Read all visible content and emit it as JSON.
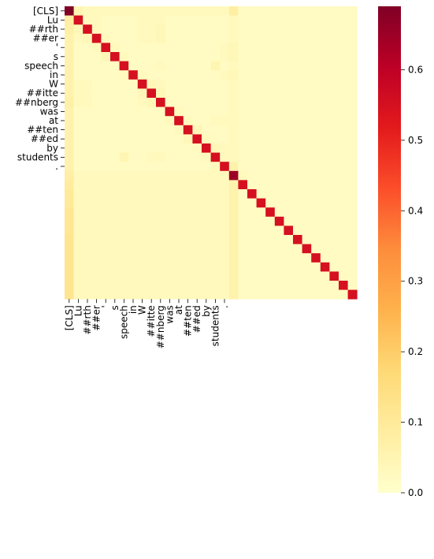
{
  "chart_data": {
    "type": "heatmap",
    "title": "",
    "xlabel": "",
    "ylabel": "",
    "x_tick_labels": [
      "[CLS]",
      "Lu",
      "##rth",
      "##er",
      "'",
      "s",
      "speech",
      "in",
      "W",
      "##itte",
      "##nberg",
      "was",
      "at",
      "##ten",
      "##ed",
      "by",
      "students",
      "."
    ],
    "y_tick_labels": [
      "[CLS]",
      "Lu",
      "##rth",
      "##er",
      "'",
      "s",
      "speech",
      "in",
      "W",
      "##itte",
      "##nberg",
      "was",
      "at",
      "##ten",
      "##ed",
      "by",
      "students",
      "."
    ],
    "rows": 32,
    "cols": 32,
    "description": "attention weights; diagonal is strong, first column weak but nonzero",
    "cells": [
      [
        0.69,
        0.05,
        0.03,
        0.03,
        0.03,
        0.03,
        0.03,
        0.03,
        0.03,
        0.03,
        0.03,
        0.03,
        0.03,
        0.03,
        0.03,
        0.03,
        0.03,
        0.03,
        0.08,
        0.02,
        0.02,
        0.02,
        0.02,
        0.02,
        0.02,
        0.02,
        0.02,
        0.02,
        0.02,
        0.02,
        0.02,
        0.02
      ],
      [
        0.08,
        0.55,
        0.03,
        0.03,
        0.02,
        0.02,
        0.02,
        0.02,
        0.03,
        0.03,
        0.03,
        0.02,
        0.02,
        0.02,
        0.02,
        0.02,
        0.02,
        0.02,
        0.03,
        0.02,
        0.02,
        0.02,
        0.02,
        0.02,
        0.02,
        0.02,
        0.02,
        0.02,
        0.02,
        0.02,
        0.02,
        0.02
      ],
      [
        0.07,
        0.04,
        0.55,
        0.03,
        0.02,
        0.02,
        0.02,
        0.02,
        0.03,
        0.03,
        0.04,
        0.02,
        0.02,
        0.02,
        0.02,
        0.02,
        0.02,
        0.02,
        0.03,
        0.02,
        0.02,
        0.02,
        0.02,
        0.02,
        0.02,
        0.02,
        0.02,
        0.02,
        0.02,
        0.02,
        0.02,
        0.02
      ],
      [
        0.06,
        0.03,
        0.04,
        0.55,
        0.03,
        0.02,
        0.02,
        0.02,
        0.03,
        0.03,
        0.04,
        0.02,
        0.02,
        0.02,
        0.02,
        0.02,
        0.02,
        0.02,
        0.03,
        0.02,
        0.02,
        0.02,
        0.02,
        0.02,
        0.02,
        0.02,
        0.02,
        0.02,
        0.02,
        0.02,
        0.02,
        0.02
      ],
      [
        0.06,
        0.02,
        0.02,
        0.03,
        0.55,
        0.03,
        0.02,
        0.02,
        0.02,
        0.02,
        0.02,
        0.02,
        0.02,
        0.02,
        0.02,
        0.02,
        0.02,
        0.03,
        0.04,
        0.02,
        0.02,
        0.02,
        0.02,
        0.02,
        0.02,
        0.02,
        0.02,
        0.02,
        0.02,
        0.02,
        0.02,
        0.02
      ],
      [
        0.06,
        0.02,
        0.02,
        0.02,
        0.04,
        0.55,
        0.03,
        0.02,
        0.02,
        0.02,
        0.02,
        0.02,
        0.02,
        0.02,
        0.02,
        0.02,
        0.02,
        0.03,
        0.04,
        0.02,
        0.02,
        0.02,
        0.02,
        0.02,
        0.02,
        0.02,
        0.02,
        0.02,
        0.02,
        0.02,
        0.02,
        0.02
      ],
      [
        0.06,
        0.02,
        0.02,
        0.02,
        0.02,
        0.02,
        0.55,
        0.02,
        0.02,
        0.02,
        0.03,
        0.02,
        0.02,
        0.02,
        0.02,
        0.02,
        0.05,
        0.02,
        0.03,
        0.02,
        0.02,
        0.02,
        0.02,
        0.02,
        0.02,
        0.02,
        0.02,
        0.02,
        0.02,
        0.02,
        0.02,
        0.02
      ],
      [
        0.06,
        0.02,
        0.02,
        0.02,
        0.02,
        0.02,
        0.03,
        0.55,
        0.03,
        0.02,
        0.02,
        0.02,
        0.02,
        0.02,
        0.02,
        0.02,
        0.02,
        0.03,
        0.04,
        0.02,
        0.02,
        0.02,
        0.02,
        0.02,
        0.02,
        0.02,
        0.02,
        0.02,
        0.02,
        0.02,
        0.02,
        0.02
      ],
      [
        0.06,
        0.03,
        0.03,
        0.02,
        0.02,
        0.02,
        0.02,
        0.02,
        0.55,
        0.04,
        0.03,
        0.02,
        0.02,
        0.02,
        0.02,
        0.02,
        0.02,
        0.02,
        0.03,
        0.02,
        0.02,
        0.02,
        0.02,
        0.02,
        0.02,
        0.02,
        0.02,
        0.02,
        0.02,
        0.02,
        0.02,
        0.02
      ],
      [
        0.06,
        0.03,
        0.03,
        0.02,
        0.02,
        0.02,
        0.02,
        0.02,
        0.04,
        0.55,
        0.04,
        0.02,
        0.02,
        0.02,
        0.02,
        0.02,
        0.02,
        0.02,
        0.03,
        0.02,
        0.02,
        0.02,
        0.02,
        0.02,
        0.02,
        0.02,
        0.02,
        0.02,
        0.02,
        0.02,
        0.02,
        0.02
      ],
      [
        0.07,
        0.03,
        0.03,
        0.02,
        0.02,
        0.02,
        0.02,
        0.02,
        0.03,
        0.04,
        0.55,
        0.02,
        0.02,
        0.02,
        0.02,
        0.02,
        0.02,
        0.02,
        0.03,
        0.02,
        0.02,
        0.02,
        0.02,
        0.02,
        0.02,
        0.02,
        0.02,
        0.02,
        0.02,
        0.02,
        0.02,
        0.02
      ],
      [
        0.06,
        0.02,
        0.02,
        0.02,
        0.02,
        0.02,
        0.02,
        0.02,
        0.02,
        0.02,
        0.02,
        0.55,
        0.03,
        0.02,
        0.02,
        0.02,
        0.02,
        0.02,
        0.03,
        0.02,
        0.02,
        0.02,
        0.02,
        0.02,
        0.02,
        0.02,
        0.02,
        0.02,
        0.02,
        0.02,
        0.02,
        0.02
      ],
      [
        0.06,
        0.02,
        0.02,
        0.02,
        0.02,
        0.02,
        0.02,
        0.02,
        0.02,
        0.02,
        0.02,
        0.03,
        0.55,
        0.03,
        0.02,
        0.02,
        0.03,
        0.03,
        0.03,
        0.02,
        0.02,
        0.02,
        0.02,
        0.02,
        0.02,
        0.02,
        0.02,
        0.02,
        0.02,
        0.02,
        0.02,
        0.02
      ],
      [
        0.06,
        0.02,
        0.02,
        0.02,
        0.02,
        0.02,
        0.02,
        0.02,
        0.02,
        0.02,
        0.02,
        0.02,
        0.03,
        0.55,
        0.04,
        0.02,
        0.02,
        0.02,
        0.03,
        0.02,
        0.02,
        0.02,
        0.02,
        0.02,
        0.02,
        0.02,
        0.02,
        0.02,
        0.02,
        0.02,
        0.02,
        0.02
      ],
      [
        0.06,
        0.02,
        0.02,
        0.02,
        0.02,
        0.02,
        0.02,
        0.02,
        0.02,
        0.02,
        0.02,
        0.02,
        0.02,
        0.04,
        0.55,
        0.03,
        0.02,
        0.02,
        0.03,
        0.02,
        0.02,
        0.02,
        0.02,
        0.02,
        0.02,
        0.02,
        0.02,
        0.02,
        0.02,
        0.02,
        0.02,
        0.02
      ],
      [
        0.06,
        0.02,
        0.02,
        0.02,
        0.02,
        0.02,
        0.02,
        0.02,
        0.02,
        0.02,
        0.02,
        0.02,
        0.02,
        0.02,
        0.03,
        0.55,
        0.04,
        0.03,
        0.03,
        0.02,
        0.02,
        0.02,
        0.02,
        0.02,
        0.02,
        0.02,
        0.02,
        0.02,
        0.02,
        0.02,
        0.02,
        0.02
      ],
      [
        0.06,
        0.02,
        0.02,
        0.02,
        0.02,
        0.02,
        0.05,
        0.02,
        0.02,
        0.03,
        0.03,
        0.02,
        0.02,
        0.02,
        0.02,
        0.03,
        0.55,
        0.03,
        0.03,
        0.02,
        0.02,
        0.02,
        0.02,
        0.02,
        0.02,
        0.02,
        0.02,
        0.02,
        0.02,
        0.02,
        0.02,
        0.02
      ],
      [
        0.06,
        0.02,
        0.02,
        0.02,
        0.02,
        0.02,
        0.02,
        0.02,
        0.02,
        0.02,
        0.02,
        0.02,
        0.02,
        0.02,
        0.02,
        0.02,
        0.03,
        0.55,
        0.06,
        0.02,
        0.02,
        0.02,
        0.02,
        0.02,
        0.02,
        0.02,
        0.02,
        0.02,
        0.02,
        0.02,
        0.02,
        0.02
      ],
      [
        0.08,
        0.03,
        0.03,
        0.03,
        0.03,
        0.03,
        0.03,
        0.03,
        0.03,
        0.03,
        0.03,
        0.03,
        0.03,
        0.03,
        0.03,
        0.03,
        0.03,
        0.03,
        0.65,
        0.03,
        0.02,
        0.02,
        0.02,
        0.02,
        0.02,
        0.02,
        0.02,
        0.02,
        0.02,
        0.02,
        0.02,
        0.02
      ],
      [
        0.09,
        0.03,
        0.03,
        0.03,
        0.03,
        0.03,
        0.03,
        0.03,
        0.03,
        0.03,
        0.03,
        0.03,
        0.03,
        0.03,
        0.03,
        0.03,
        0.03,
        0.03,
        0.06,
        0.55,
        0.02,
        0.02,
        0.02,
        0.02,
        0.02,
        0.02,
        0.02,
        0.02,
        0.02,
        0.02,
        0.02,
        0.02
      ],
      [
        0.1,
        0.03,
        0.03,
        0.03,
        0.03,
        0.03,
        0.03,
        0.03,
        0.03,
        0.03,
        0.03,
        0.03,
        0.03,
        0.03,
        0.03,
        0.03,
        0.03,
        0.03,
        0.06,
        0.02,
        0.55,
        0.02,
        0.02,
        0.02,
        0.02,
        0.02,
        0.02,
        0.02,
        0.02,
        0.02,
        0.02,
        0.02
      ],
      [
        0.1,
        0.03,
        0.03,
        0.03,
        0.03,
        0.03,
        0.03,
        0.03,
        0.03,
        0.03,
        0.03,
        0.03,
        0.03,
        0.03,
        0.03,
        0.03,
        0.03,
        0.03,
        0.06,
        0.02,
        0.02,
        0.55,
        0.02,
        0.02,
        0.02,
        0.02,
        0.02,
        0.02,
        0.02,
        0.02,
        0.02,
        0.02
      ],
      [
        0.11,
        0.03,
        0.03,
        0.03,
        0.03,
        0.03,
        0.03,
        0.03,
        0.03,
        0.03,
        0.03,
        0.03,
        0.03,
        0.03,
        0.03,
        0.03,
        0.03,
        0.03,
        0.06,
        0.02,
        0.02,
        0.02,
        0.55,
        0.02,
        0.02,
        0.02,
        0.02,
        0.02,
        0.02,
        0.02,
        0.02,
        0.02
      ],
      [
        0.11,
        0.03,
        0.03,
        0.03,
        0.03,
        0.03,
        0.03,
        0.03,
        0.03,
        0.03,
        0.03,
        0.03,
        0.03,
        0.03,
        0.03,
        0.03,
        0.03,
        0.03,
        0.06,
        0.02,
        0.02,
        0.02,
        0.02,
        0.55,
        0.02,
        0.02,
        0.02,
        0.02,
        0.02,
        0.02,
        0.02,
        0.02
      ],
      [
        0.11,
        0.03,
        0.03,
        0.03,
        0.03,
        0.03,
        0.03,
        0.03,
        0.03,
        0.03,
        0.03,
        0.03,
        0.03,
        0.03,
        0.03,
        0.03,
        0.03,
        0.03,
        0.06,
        0.02,
        0.02,
        0.02,
        0.02,
        0.02,
        0.55,
        0.02,
        0.02,
        0.02,
        0.02,
        0.02,
        0.02,
        0.02
      ],
      [
        0.12,
        0.03,
        0.03,
        0.03,
        0.03,
        0.03,
        0.03,
        0.03,
        0.03,
        0.03,
        0.03,
        0.03,
        0.03,
        0.03,
        0.03,
        0.03,
        0.03,
        0.03,
        0.06,
        0.02,
        0.02,
        0.02,
        0.02,
        0.02,
        0.02,
        0.55,
        0.02,
        0.02,
        0.02,
        0.02,
        0.02,
        0.02
      ],
      [
        0.12,
        0.03,
        0.03,
        0.03,
        0.03,
        0.03,
        0.03,
        0.03,
        0.03,
        0.03,
        0.03,
        0.03,
        0.03,
        0.03,
        0.03,
        0.03,
        0.03,
        0.03,
        0.06,
        0.02,
        0.02,
        0.02,
        0.02,
        0.02,
        0.02,
        0.02,
        0.55,
        0.02,
        0.02,
        0.02,
        0.02,
        0.02
      ],
      [
        0.12,
        0.03,
        0.03,
        0.03,
        0.03,
        0.03,
        0.03,
        0.03,
        0.03,
        0.03,
        0.03,
        0.03,
        0.03,
        0.03,
        0.03,
        0.03,
        0.03,
        0.03,
        0.06,
        0.02,
        0.02,
        0.02,
        0.02,
        0.02,
        0.02,
        0.02,
        0.02,
        0.55,
        0.02,
        0.02,
        0.02,
        0.02
      ],
      [
        0.12,
        0.03,
        0.03,
        0.03,
        0.03,
        0.03,
        0.03,
        0.03,
        0.03,
        0.03,
        0.03,
        0.03,
        0.03,
        0.03,
        0.03,
        0.03,
        0.03,
        0.03,
        0.06,
        0.02,
        0.02,
        0.02,
        0.02,
        0.02,
        0.02,
        0.02,
        0.02,
        0.02,
        0.55,
        0.02,
        0.02,
        0.02
      ],
      [
        0.12,
        0.03,
        0.03,
        0.03,
        0.03,
        0.03,
        0.03,
        0.03,
        0.03,
        0.03,
        0.03,
        0.03,
        0.03,
        0.03,
        0.03,
        0.03,
        0.03,
        0.03,
        0.06,
        0.02,
        0.02,
        0.02,
        0.02,
        0.02,
        0.02,
        0.02,
        0.02,
        0.02,
        0.02,
        0.55,
        0.02,
        0.02
      ],
      [
        0.12,
        0.03,
        0.03,
        0.03,
        0.03,
        0.03,
        0.03,
        0.03,
        0.03,
        0.03,
        0.03,
        0.03,
        0.03,
        0.03,
        0.03,
        0.03,
        0.03,
        0.03,
        0.06,
        0.02,
        0.02,
        0.02,
        0.02,
        0.02,
        0.02,
        0.02,
        0.02,
        0.02,
        0.02,
        0.02,
        0.55,
        0.02
      ],
      [
        0.12,
        0.03,
        0.03,
        0.03,
        0.03,
        0.03,
        0.03,
        0.03,
        0.03,
        0.03,
        0.03,
        0.03,
        0.03,
        0.03,
        0.03,
        0.03,
        0.03,
        0.03,
        0.06,
        0.02,
        0.02,
        0.02,
        0.02,
        0.02,
        0.02,
        0.02,
        0.02,
        0.02,
        0.02,
        0.02,
        0.02,
        0.55
      ]
    ],
    "colorbar": {
      "colormap": "YlOrRd",
      "vmin": 0.0,
      "vmax": 0.69,
      "ticks": [
        0.0,
        0.1,
        0.2,
        0.3,
        0.4,
        0.5,
        0.6
      ],
      "tick_labels": [
        "0.0",
        "0.1",
        "0.2",
        "0.3",
        "0.4",
        "0.5",
        "0.6"
      ]
    },
    "grid": false,
    "legend": "none"
  }
}
